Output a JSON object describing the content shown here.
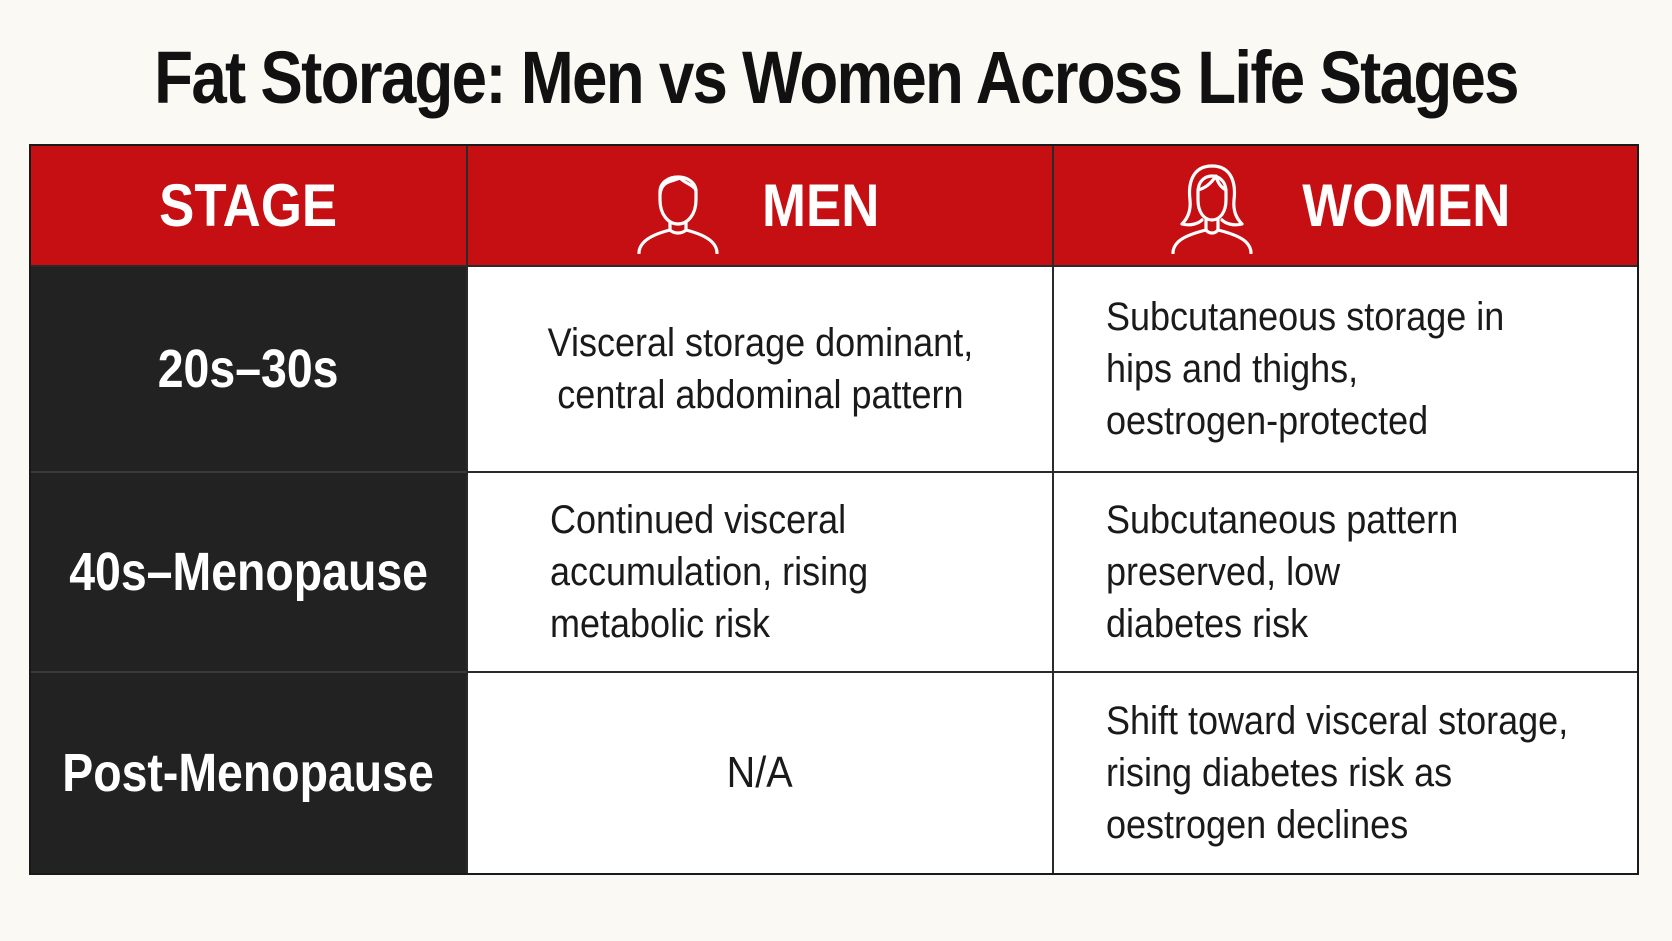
{
  "title": "Fat Storage: Men vs Women Across Life Stages",
  "colors": {
    "header_bg": "#c50f12",
    "stage_bg": "#222222",
    "page_bg": "#fbf9f4"
  },
  "header": {
    "stage_label": "STAGE",
    "men_label": "MEN",
    "men_icon": "man-outline-icon",
    "women_label": "WOMEN",
    "women_icon": "woman-outline-icon"
  },
  "rows": [
    {
      "stage": "20s–30s",
      "men": [
        "Visceral storage dominant,",
        "central abdominal pattern"
      ],
      "women": [
        "Subcutaneous storage in",
        "hips and thighs,",
        "oestrogen-protected"
      ]
    },
    {
      "stage": "40s–Menopause",
      "men": [
        "Continued visceral",
        "accumulation, rising",
        "metabolic risk"
      ],
      "women": [
        "Subcutaneous pattern",
        "preserved, low",
        "diabetes risk"
      ]
    },
    {
      "stage": "Post-Menopause",
      "men": [
        "N/A"
      ],
      "women": [
        "Shift toward visceral storage,",
        "rising diabetes risk as",
        "oestrogen declines"
      ]
    }
  ]
}
